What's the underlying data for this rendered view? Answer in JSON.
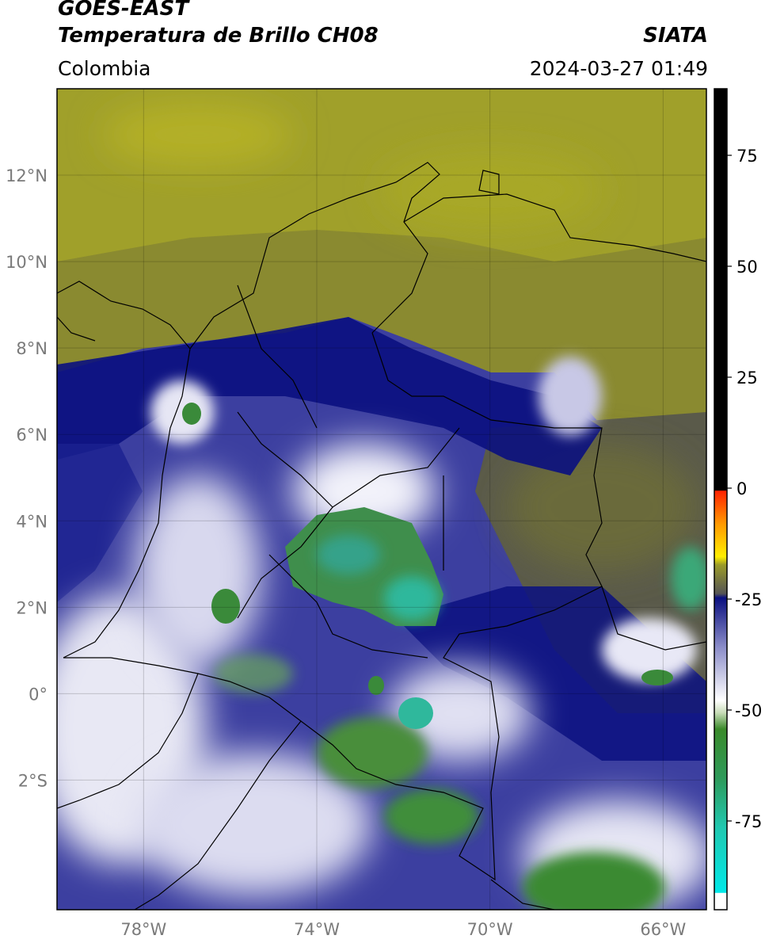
{
  "header": {
    "satellite": "GOES-EAST",
    "product": "Temperatura de Brillo CH08",
    "region": "Colombia",
    "org": "SIATA",
    "datetime": "2024-03-27 01:49"
  },
  "map": {
    "lat_labels": [
      "12°N",
      "10°N",
      "8°N",
      "6°N",
      "4°N",
      "2°N",
      "0°",
      "2°S"
    ],
    "lat_values": [
      12,
      10,
      8,
      6,
      4,
      2,
      0,
      -2
    ],
    "lon_labels": [
      "78°W",
      "74°W",
      "70°W",
      "66°W"
    ],
    "lon_values": [
      -78,
      -74,
      -70,
      -66
    ],
    "extent": {
      "lon_min": -80,
      "lon_max": -65,
      "lat_min": -5,
      "lat_max": 14
    }
  },
  "colorbar": {
    "tick_labels": [
      "75",
      "50",
      "25",
      "0",
      "-25",
      "-50",
      "-75"
    ],
    "tick_values": [
      75,
      50,
      25,
      0,
      -25,
      -50,
      -75
    ],
    "min": -95,
    "max": 90,
    "colors": {
      "black": "#000000",
      "red": "#ff2200",
      "orange": "#ff9900",
      "yellow": "#ffee00",
      "olive": "#9a9a28",
      "gray": "#555555",
      "navy": "#0a1080",
      "white": "#ffffff",
      "green": "#3a8a2a",
      "teal": "#20c8b0",
      "cyan": "#00e8e8"
    }
  }
}
